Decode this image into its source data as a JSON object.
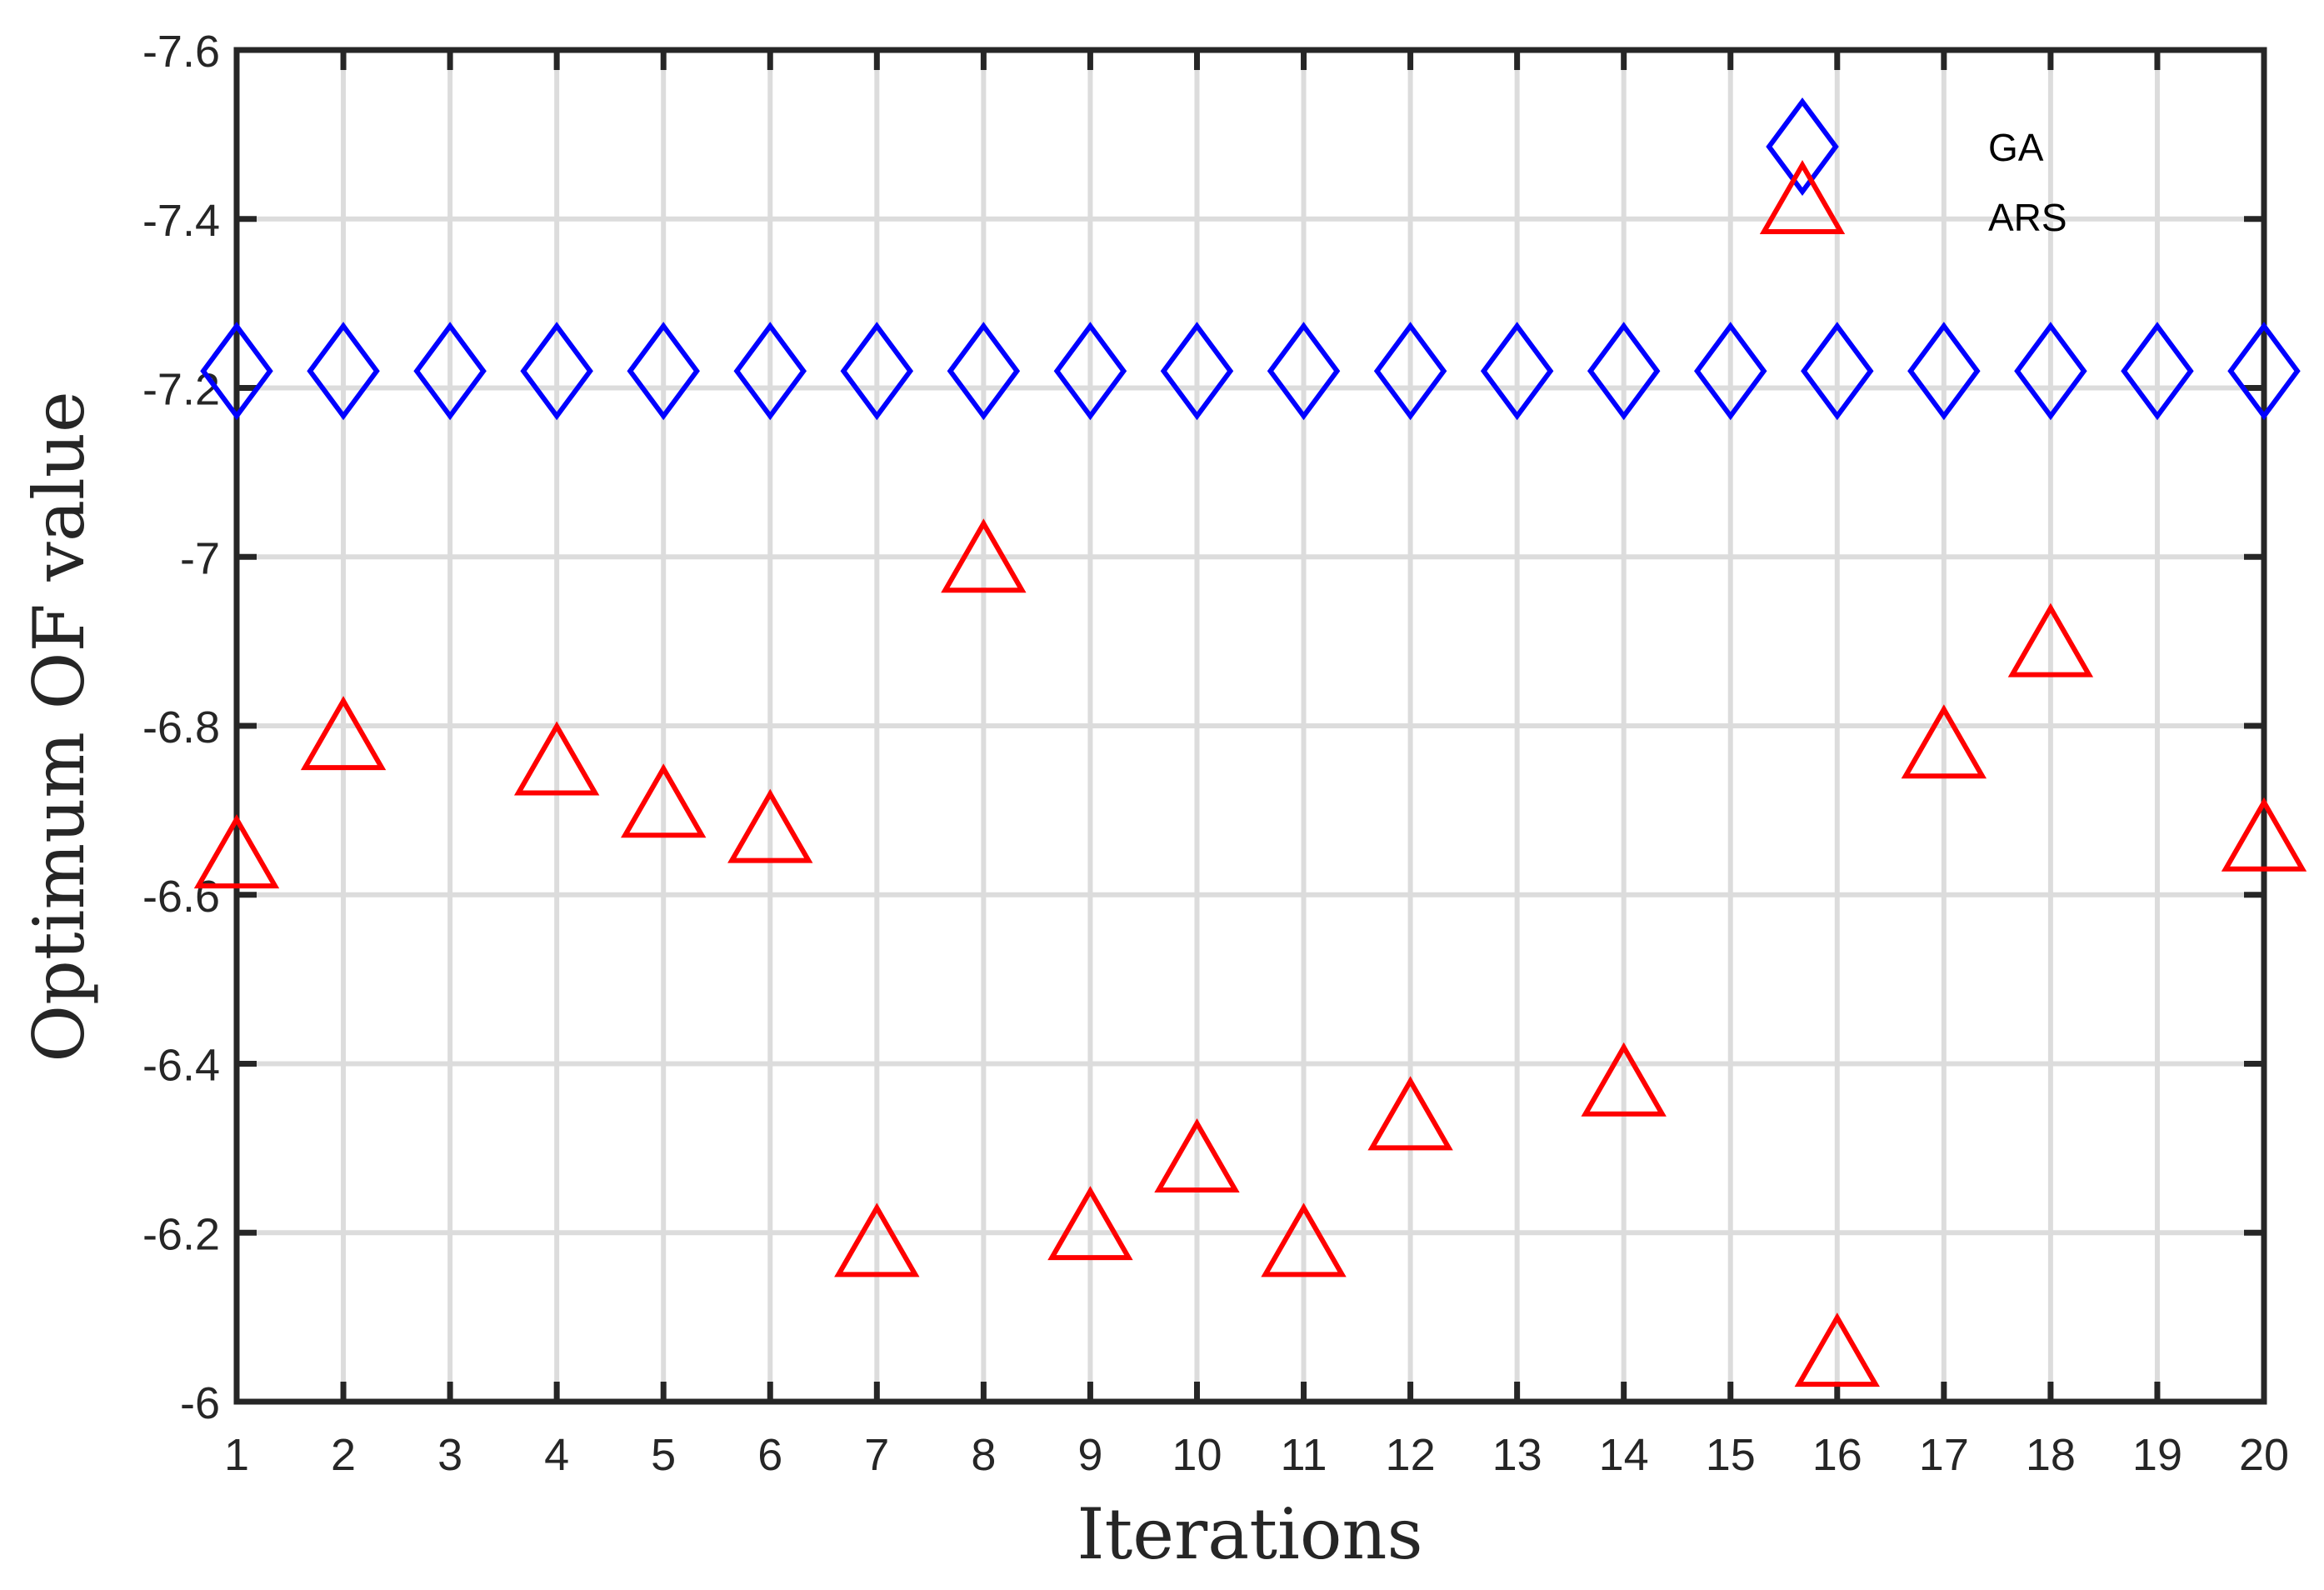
{
  "chart_data": {
    "type": "scatter",
    "title": "",
    "xlabel": "Iterations",
    "ylabel": "Optimum OF value",
    "xlim": [
      1,
      20
    ],
    "ylim": [
      -7.6,
      -6
    ],
    "y_reversed": true,
    "grid": true,
    "legend_position": "top-right (inside, no box)",
    "x_ticks": [
      1,
      2,
      3,
      4,
      5,
      6,
      7,
      8,
      9,
      10,
      11,
      12,
      13,
      14,
      15,
      16,
      17,
      18,
      19,
      20
    ],
    "y_ticks": [
      -7.6,
      -7.4,
      -7.2,
      -7,
      -6.8,
      -6.6,
      -6.4,
      -6.2,
      -6
    ],
    "y_tick_labels": [
      "-7.6",
      "-7.4",
      "-7.2",
      "-7",
      "-6.8",
      "-6.6",
      "-6.4",
      "-6.2",
      "-6"
    ],
    "x": [
      1,
      2,
      3,
      4,
      5,
      6,
      7,
      8,
      9,
      10,
      11,
      12,
      13,
      14,
      15,
      16,
      17,
      18,
      19,
      20
    ],
    "series": [
      {
        "name": "GA",
        "marker": "diamond",
        "color": "#0000ff",
        "values": [
          -7.22,
          -7.22,
          -7.22,
          -7.22,
          -7.22,
          -7.22,
          -7.22,
          -7.22,
          -7.22,
          -7.22,
          -7.22,
          -7.22,
          -7.22,
          -7.22,
          -7.22,
          -7.22,
          -7.22,
          -7.22,
          -7.22,
          -7.22
        ]
      },
      {
        "name": "ARS",
        "marker": "triangle-up",
        "color": "#ff0000",
        "values": [
          -6.65,
          -6.79,
          null,
          -6.76,
          -6.71,
          -6.68,
          -6.19,
          -7.0,
          -6.21,
          -6.29,
          -6.19,
          -6.34,
          null,
          -6.38,
          null,
          -6.06,
          -6.78,
          -6.9,
          null,
          -6.67
        ]
      }
    ]
  },
  "legend": {
    "items": [
      {
        "label": "GA",
        "marker": "diamond",
        "color": "#0000ff"
      },
      {
        "label": "ARS",
        "marker": "triangle-up",
        "color": "#ff0000"
      }
    ]
  },
  "style": {
    "axis_color": "#262626",
    "grid_color": "#dcdcdc",
    "background": "#ffffff"
  }
}
